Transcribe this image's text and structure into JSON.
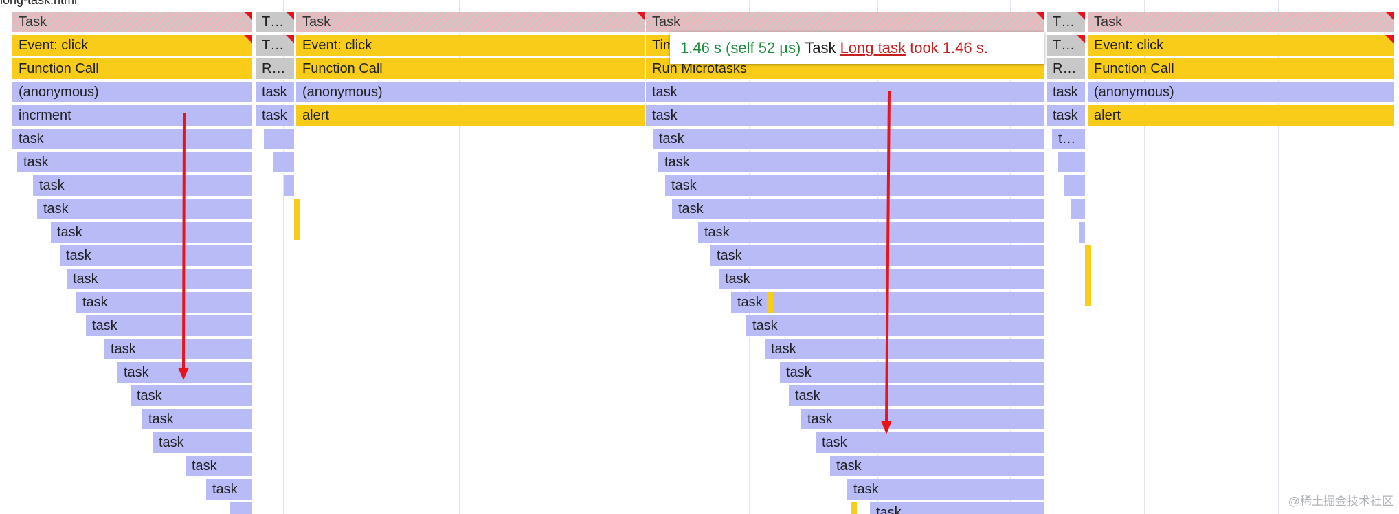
{
  "file_label": "long-task.html",
  "tooltip": {
    "duration": "1.46 s (self 52 µs)",
    "name": "Task",
    "link_text": "Long task",
    "warning_text": "took 1.46 s."
  },
  "watermark": "@稀土掘金技术社区",
  "colors": {
    "yellow": "#f9cc1a",
    "purple": "#b9bbf6",
    "red_flag": "#e8141c",
    "tooltip_duration": "#1e8e3e",
    "tooltip_warning": "#c5221f",
    "arrow": "#e8141c"
  },
  "labels": {
    "task_hdr": "Task",
    "task_hdr_short": "T…",
    "event_click": "Event: click",
    "function_call": "Function Call",
    "anonymous": "(anonymous)",
    "incrment": "incrment",
    "task": "task",
    "alert": "alert",
    "timer": "Timer Fired",
    "run_microtasks": "Run Microtasks",
    "r_short": "R…",
    "t_short": "t…"
  }
}
